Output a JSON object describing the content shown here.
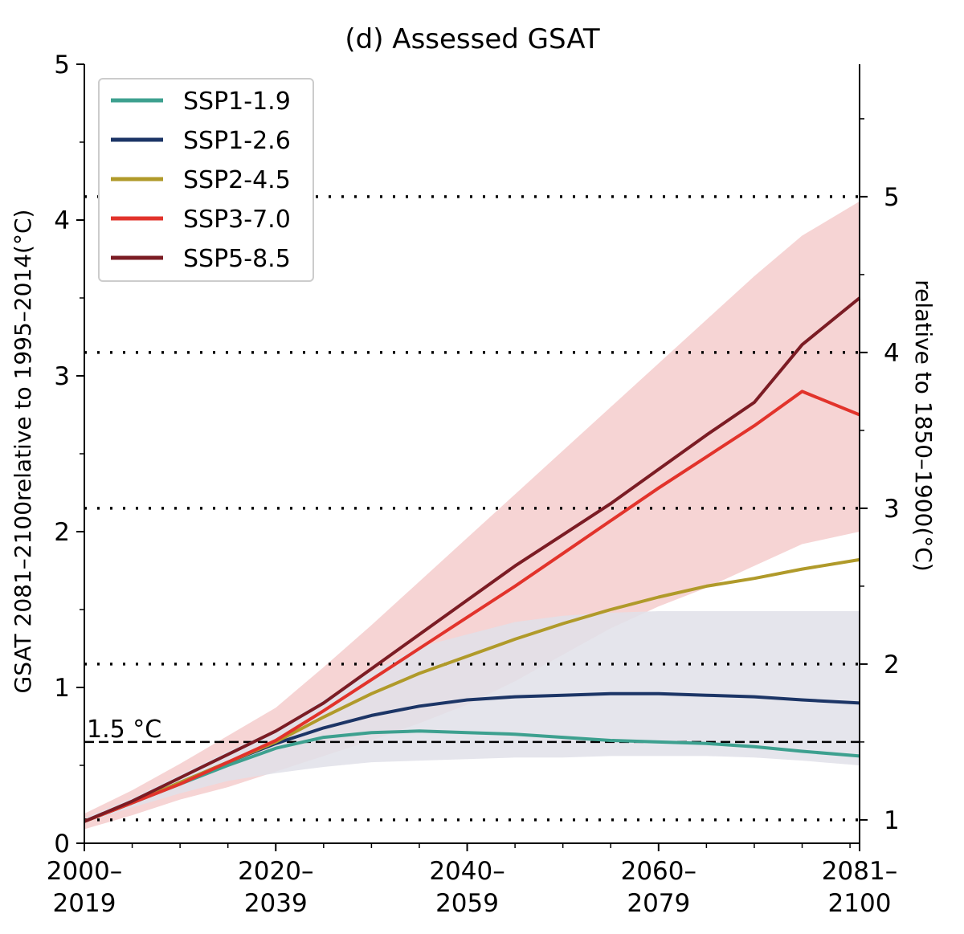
{
  "chart_data": {
    "type": "line",
    "title": "(d) Assessed GSAT",
    "ylabel": "GSAT 2081–2100relative to 1995–2014(°C)",
    "y2label": "relative to 1850–1900(°C)",
    "xlabel": "",
    "xlim": [
      2009.5,
      2090.5
    ],
    "ylim": [
      0,
      5
    ],
    "y2_offset": 0.85,
    "x_ticks": [
      {
        "value": 2009.5,
        "line1": "2000–",
        "line2": "2019"
      },
      {
        "value": 2029.5,
        "line1": "2020–",
        "line2": "2039"
      },
      {
        "value": 2049.5,
        "line1": "2040–",
        "line2": "2059"
      },
      {
        "value": 2069.5,
        "line1": "2060–",
        "line2": "2079"
      },
      {
        "value": 2090.5,
        "line1": "2081–",
        "line2": "2100"
      }
    ],
    "y_ticks": [
      0,
      1,
      2,
      3,
      4,
      5
    ],
    "y2_ticks": [
      1,
      2,
      3,
      4,
      5
    ],
    "dotted_reference_levels": "right-axis integer ticks",
    "threshold": {
      "value": 0.65,
      "label": "1.5 °C"
    },
    "legend_position": "top-left",
    "x": [
      2009.5,
      2014.5,
      2019.5,
      2024.5,
      2029.5,
      2034.5,
      2039.5,
      2044.5,
      2049.5,
      2054.5,
      2059.5,
      2064.5,
      2069.5,
      2074.5,
      2079.5,
      2084.5,
      2090.5
    ],
    "series": [
      {
        "name": "SSP1-1.9",
        "color": "#3da08f",
        "values": [
          0.14,
          0.26,
          0.38,
          0.5,
          0.61,
          0.68,
          0.71,
          0.72,
          0.71,
          0.7,
          0.68,
          0.66,
          0.65,
          0.64,
          0.62,
          0.59,
          0.56
        ]
      },
      {
        "name": "SSP1-2.6",
        "color": "#1c3566",
        "values": [
          0.14,
          0.26,
          0.39,
          0.52,
          0.64,
          0.74,
          0.82,
          0.88,
          0.92,
          0.94,
          0.95,
          0.96,
          0.96,
          0.95,
          0.94,
          0.92,
          0.9
        ]
      },
      {
        "name": "SSP2-4.5",
        "color": "#b09a2a",
        "values": [
          0.14,
          0.26,
          0.39,
          0.52,
          0.65,
          0.81,
          0.96,
          1.09,
          1.2,
          1.31,
          1.41,
          1.5,
          1.58,
          1.65,
          1.7,
          1.76,
          1.82
        ]
      },
      {
        "name": "SSP3-7.0",
        "color": "#e2332b",
        "values": [
          0.14,
          0.26,
          0.38,
          0.52,
          0.66,
          0.85,
          1.05,
          1.25,
          1.45,
          1.65,
          1.86,
          2.07,
          2.28,
          2.48,
          2.68,
          2.9,
          2.75
        ]
      },
      {
        "name": "SSP5-8.5",
        "color": "#7b1c24",
        "values": [
          0.14,
          0.27,
          0.42,
          0.57,
          0.72,
          0.9,
          1.12,
          1.34,
          1.56,
          1.78,
          1.98,
          2.18,
          2.4,
          2.62,
          2.83,
          3.2,
          3.5
        ]
      }
    ],
    "bands": [
      {
        "color": "#f4cccc",
        "lower": [
          0.09,
          0.18,
          0.28,
          0.36,
          0.46,
          0.56,
          0.66,
          0.77,
          0.89,
          1.04,
          1.21,
          1.38,
          1.52,
          1.64,
          1.78,
          1.92,
          2.0
        ],
        "upper": [
          0.19,
          0.34,
          0.51,
          0.69,
          0.87,
          1.13,
          1.4,
          1.68,
          1.96,
          2.24,
          2.52,
          2.8,
          3.08,
          3.36,
          3.64,
          3.9,
          4.12
        ]
      },
      {
        "color": "#e0e1e9",
        "lower": [
          0.13,
          0.23,
          0.32,
          0.4,
          0.45,
          0.49,
          0.52,
          0.53,
          0.54,
          0.55,
          0.55,
          0.56,
          0.56,
          0.56,
          0.55,
          0.53,
          0.5
        ],
        "upper": [
          0.16,
          0.29,
          0.44,
          0.59,
          0.73,
          0.92,
          1.1,
          1.26,
          1.34,
          1.42,
          1.46,
          1.48,
          1.49,
          1.49,
          1.49,
          1.49,
          1.49
        ]
      }
    ]
  }
}
